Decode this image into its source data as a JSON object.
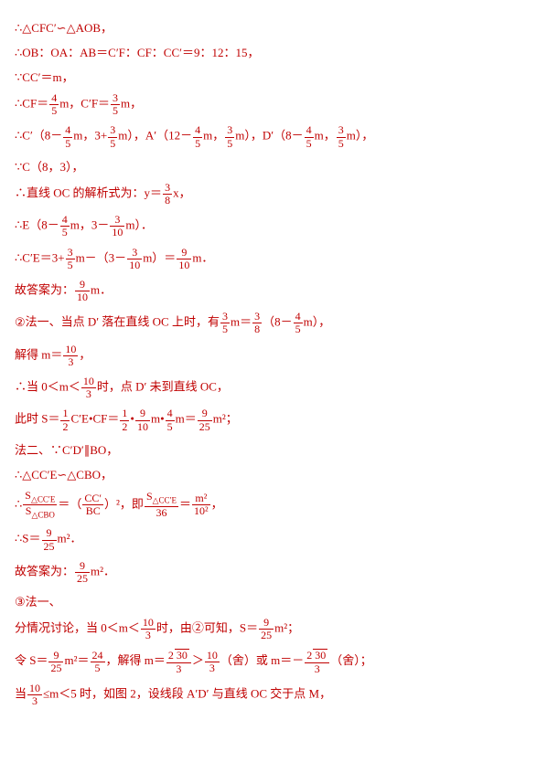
{
  "l1": "∴△CFC′∽△AOB，",
  "l2_a": "∴OB：OA：AB＝C′F：CF：CC′＝9：12：15，",
  "l3": "∵CC′＝m，",
  "l4_a": "∴CF＝",
  "l4_b": "m，C′F＝",
  "l4_c": "m，",
  "l5_a": "∴C′（8－",
  "l5_b": "m，3+",
  "l5_c": "m），A′（12－",
  "l5_d": "m，",
  "l5_e": "m），D′（8－",
  "l5_f": "m，",
  "l5_g": "m），",
  "l6": "∵C（8，3），",
  "l7_a": "∴直线 OC 的解析式为：y＝",
  "l7_b": "x，",
  "l8_a": "∴E（8－",
  "l8_b": "m，3－",
  "l8_c": "m）．",
  "l9_a": "∴C′E＝3+",
  "l9_b": "m－（3－",
  "l9_c": "m）＝",
  "l9_d": "m．",
  "l10_a": "故答案为：",
  "l10_b": "m．",
  "l11_a": "法一、当点 D′ 落在直线 OC 上时，有",
  "l11_b": "m＝",
  "l11_c": "（8－",
  "l11_d": "m），",
  "l12_a": "解得 m＝",
  "l12_b": "，",
  "l13_a": "∴当 0＜m＜",
  "l13_b": "时，点 D′ 未到直线 OC，",
  "l14_a": "此时 S＝",
  "l14_b": "C′E•CF＝",
  "l14_c": "•",
  "l14_d": "m•",
  "l14_e": "m＝",
  "l14_f": "m²；",
  "l15": "法二、∵C′D′∥BO，",
  "l16": "∴△CC′E∽△CBO，",
  "l17_a": "∴",
  "l17_b": "＝（",
  "l17_c": "）²，即",
  "l17_d": "＝",
  "l17_e": "，",
  "l18_a": "∴S＝",
  "l18_b": "m²．",
  "l19_a": "故答案为：",
  "l19_b": "m²．",
  "l20": "法一、",
  "l21_a": "分情况讨论，当 0＜m＜",
  "l21_b": "时，由②可知，S＝",
  "l21_c": "m²；",
  "l22_a": "令 S＝",
  "l22_b": "m²＝",
  "l22_c": "，解得 m＝",
  "l22_d": "＞",
  "l22_e": "（舍）或 m＝－",
  "l22_f": "（舍）；",
  "l23_a": "当",
  "l23_b": "≤m＜5 时，如图 2，设线段 A′D′ 与直线 OC 交于点 M，",
  "circ2": "②",
  "circ3": "③",
  "f": {
    "n4": "4",
    "n5": "5",
    "n3": "3",
    "n8": "8",
    "n9": "9",
    "n10": "10",
    "n1": "1",
    "n2": "2",
    "n25": "25",
    "n36": "36",
    "n24": "24",
    "n30": "30",
    "nm2": "m²",
    "n102": "10²"
  },
  "sq30": "30",
  "tri": {
    "sCCE": "S",
    "subCCE": "△CC′E",
    "sCBO": "S",
    "subCBO": "△CBO",
    "CC": "CC′",
    "BC": "BC"
  }
}
